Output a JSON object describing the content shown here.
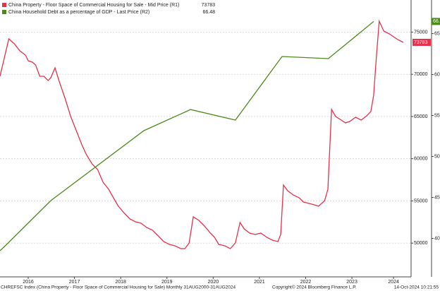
{
  "chart_data": {
    "type": "line",
    "xlim": [
      2015.89,
      2024.78
    ],
    "xticks": [
      {
        "value": 2016.5,
        "label": "2016"
      },
      {
        "value": 2017.5,
        "label": "2017"
      },
      {
        "value": 2018.5,
        "label": "2018"
      },
      {
        "value": 2019.5,
        "label": "2019"
      },
      {
        "value": 2020.5,
        "label": "2020"
      },
      {
        "value": 2021.5,
        "label": "2021"
      },
      {
        "value": 2022.5,
        "label": "2022"
      },
      {
        "value": 2023.5,
        "label": "2023"
      },
      {
        "value": 2024.4,
        "label": "2024"
      }
    ],
    "ylim": [
      46000,
      78800
    ],
    "yticks": [
      50000,
      55000,
      60000,
      65000,
      70000,
      75000
    ],
    "y2lim": [
      35.3,
      69.1
    ],
    "y2ticks": [
      40,
      45,
      50,
      55,
      60,
      65
    ],
    "grid": true,
    "series": [
      {
        "name": "China Property - Floor Space of Commercial Housing for Sale - Mid Price (R1)",
        "color": "#e8304a",
        "axis": "y",
        "x": [
          2015.89,
          2016.08,
          2016.2,
          2016.32,
          2016.44,
          2016.5,
          2016.59,
          2016.66,
          2016.75,
          2016.84,
          2016.93,
          2016.99,
          2017.08,
          2017.17,
          2017.3,
          2017.42,
          2017.54,
          2017.66,
          2017.75,
          2017.88,
          2018.0,
          2018.12,
          2018.24,
          2018.36,
          2018.45,
          2018.58,
          2018.7,
          2018.82,
          2018.94,
          2019.06,
          2019.19,
          2019.31,
          2019.43,
          2019.55,
          2019.67,
          2019.8,
          2019.89,
          2019.98,
          2020.07,
          2020.19,
          2020.31,
          2020.44,
          2020.53,
          2020.62,
          2020.75,
          2020.87,
          2020.98,
          2021.08,
          2021.17,
          2021.29,
          2021.41,
          2021.53,
          2021.66,
          2021.78,
          2021.9,
          2021.96,
          2022.02,
          2022.11,
          2022.23,
          2022.36,
          2022.45,
          2022.57,
          2022.69,
          2022.78,
          2022.91,
          2022.98,
          2023.06,
          2023.15,
          2023.27,
          2023.36,
          2023.45,
          2023.58,
          2023.7,
          2023.82,
          2023.91,
          2023.97,
          2024.03,
          2024.09,
          2024.19,
          2024.31,
          2024.4,
          2024.49,
          2024.61
        ],
        "values": [
          69762,
          74197,
          73611,
          72774,
          72272,
          71603,
          71436,
          71101,
          69762,
          69762,
          69260,
          69595,
          70766,
          69177,
          67085,
          64993,
          63320,
          61646,
          60559,
          59387,
          58718,
          57212,
          56375,
          55204,
          54367,
          53530,
          52861,
          52526,
          52359,
          51857,
          51522,
          50853,
          50184,
          49849,
          49681,
          49347,
          49347,
          50016,
          53112,
          52694,
          52024,
          51188,
          50686,
          49849,
          49681,
          49347,
          50016,
          52443,
          51690,
          51188,
          51020,
          51188,
          50686,
          50351,
          50184,
          51020,
          56877,
          56208,
          55706,
          55371,
          54869,
          54702,
          54534,
          54367,
          55036,
          56375,
          65830,
          64993,
          64575,
          64240,
          64407,
          64909,
          64575,
          65077,
          65579,
          67503,
          72105,
          76289,
          75117,
          74782,
          74448,
          74113,
          73783
        ]
      },
      {
        "name": "China Household Debt as a percentage of GDP - Last Price (R2)",
        "color": "#4d8a1a",
        "axis": "y2",
        "x": [
          2015.89,
          2016.05,
          2016.99,
          2019.0,
          2020.01,
          2020.98,
          2021.99,
          2022.99,
          2023.97
        ],
        "values": [
          38.49,
          39.35,
          44.61,
          53.15,
          55.73,
          54.44,
          62.2,
          61.94,
          66.48
        ]
      }
    ],
    "footer": {
      "source": "CHREFSC Index (China Property - Floor Space of Commercial Housing for Sale)  Monthly 31AUG2000-31AUG2024",
      "copyright": "Copyright© 2024 Bloomberg Finance L.P.",
      "timestamp": "14-Oct-2024 10:21:55"
    }
  }
}
